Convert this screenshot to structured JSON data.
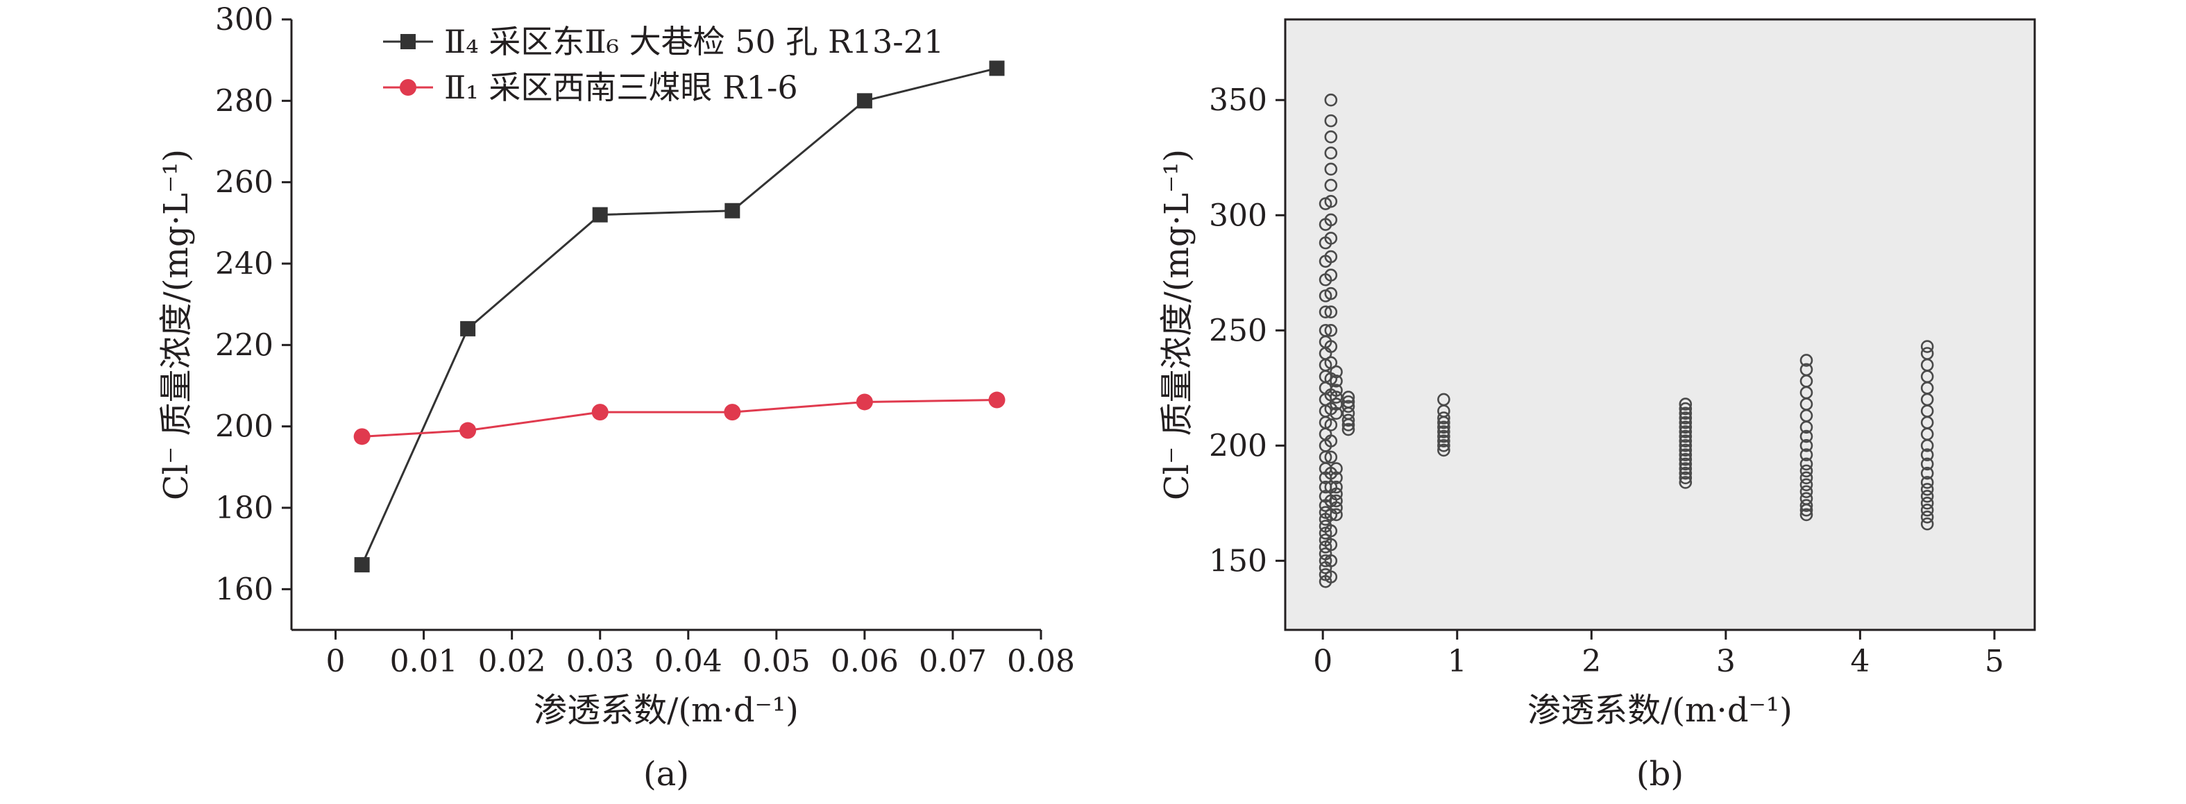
{
  "chart_data": [
    {
      "type": "line",
      "panel_label": "(a)",
      "xlabel": "渗透系数/(m·d⁻¹)",
      "ylabel": "Cl⁻ 质量浓度/(mg·L⁻¹)",
      "xlim": [
        -0.005,
        0.08
      ],
      "ylim": [
        150,
        300
      ],
      "xticks": [
        "0",
        "0.01",
        "0.02",
        "0.03",
        "0.04",
        "0.05",
        "0.06",
        "0.07",
        "0.08"
      ],
      "xtick_values": [
        0,
        0.01,
        0.02,
        0.03,
        0.04,
        0.05,
        0.06,
        0.07,
        0.08
      ],
      "yticks": [
        "160",
        "180",
        "200",
        "220",
        "240",
        "260",
        "280",
        "300"
      ],
      "ytick_values": [
        160,
        180,
        200,
        220,
        240,
        260,
        280,
        300
      ],
      "grid": false,
      "legend_position": "top-left",
      "series": [
        {
          "name": "Ⅱ₄ 采区东Ⅱ₆ 大巷检 50 孔 R13-21",
          "color": "#333333",
          "marker": "square",
          "x": [
            0.003,
            0.015,
            0.03,
            0.045,
            0.06,
            0.075
          ],
          "y": [
            166,
            224,
            252,
            253,
            280,
            288
          ]
        },
        {
          "name": "Ⅱ₁ 采区西南三煤眼 R1-6",
          "color": "#e03a4e",
          "marker": "circle",
          "x": [
            0.003,
            0.015,
            0.03,
            0.045,
            0.06,
            0.075
          ],
          "y": [
            197.5,
            199,
            203.5,
            203.5,
            206,
            206.5
          ]
        }
      ]
    },
    {
      "type": "scatter",
      "panel_label": "(b)",
      "xlabel": "渗透系数/(m·d⁻¹)",
      "ylabel": "Cl⁻ 质量浓度/(mg·L⁻¹)",
      "xlim": [
        -0.28,
        5.3
      ],
      "ylim": [
        120,
        385
      ],
      "xticks": [
        "0",
        "1",
        "2",
        "3",
        "4",
        "5"
      ],
      "xtick_values": [
        0,
        1,
        2,
        3,
        4,
        5
      ],
      "yticks": [
        "150",
        "200",
        "250",
        "300",
        "350"
      ],
      "ytick_values": [
        150,
        200,
        250,
        300,
        350
      ],
      "grid": false,
      "background": "#ebebeb",
      "marker": "open-circle",
      "groups": [
        {
          "x": 0.02,
          "y": [
            141,
            144,
            147,
            150,
            153,
            156,
            159,
            162,
            165,
            168,
            171,
            174,
            178,
            182,
            186,
            190,
            195,
            200,
            205,
            210,
            215,
            220,
            225,
            230,
            235,
            240,
            245,
            250,
            258,
            265,
            272,
            280,
            288,
            296,
            305
          ]
        },
        {
          "x": 0.06,
          "y": [
            143,
            150,
            157,
            163,
            170,
            176,
            182,
            188,
            195,
            202,
            209,
            216,
            222,
            229,
            236,
            243,
            250,
            258,
            266,
            274,
            282,
            290,
            298,
            306,
            313,
            320,
            327,
            334,
            341,
            350
          ]
        },
        {
          "x": 0.1,
          "y": [
            170,
            173,
            176,
            179,
            182,
            186,
            190,
            214,
            218,
            221,
            224,
            228,
            232
          ]
        },
        {
          "x": 0.19,
          "y": [
            207,
            209,
            211,
            214,
            217,
            219,
            221
          ]
        },
        {
          "x": 0.9,
          "y": [
            198,
            200,
            202,
            204,
            206,
            208,
            210,
            212,
            215,
            220
          ]
        },
        {
          "x": 2.7,
          "y": [
            184,
            186,
            188,
            190,
            192,
            194,
            196,
            198,
            200,
            202,
            204,
            206,
            208,
            210,
            212,
            214,
            216,
            218
          ]
        },
        {
          "x": 3.6,
          "y": [
            170,
            172,
            174,
            177,
            180,
            183,
            186,
            189,
            192,
            196,
            200,
            204,
            208,
            213,
            218,
            223,
            228,
            233,
            237
          ]
        },
        {
          "x": 4.5,
          "y": [
            166,
            169,
            172,
            175,
            178,
            181,
            184,
            188,
            192,
            196,
            200,
            205,
            210,
            215,
            220,
            225,
            230,
            235,
            240,
            243
          ]
        }
      ]
    }
  ]
}
